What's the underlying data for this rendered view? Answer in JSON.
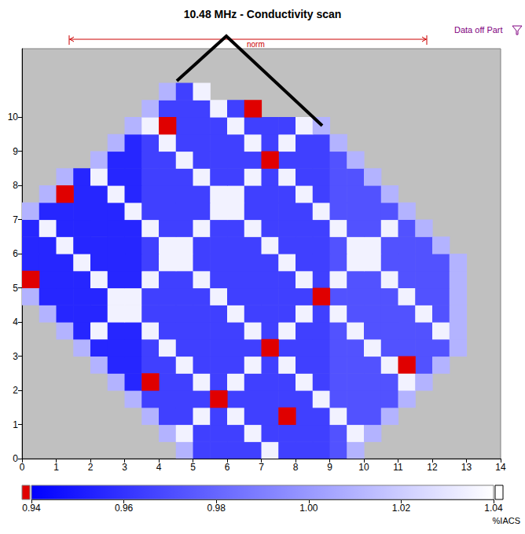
{
  "chart_data": {
    "type": "heatmap",
    "title": "10.48 MHz - Conductivity scan",
    "annotations": [
      "Data off Part",
      "norm"
    ],
    "x": [
      0.25,
      0.75,
      1.25,
      1.75,
      2.25,
      2.75,
      3.25,
      3.75,
      4.25,
      4.75,
      5.25,
      5.75,
      6.25,
      6.75,
      7.25,
      7.75,
      8.25,
      8.75,
      9.25,
      9.75,
      10.25,
      10.75,
      11.25,
      11.75,
      12.25,
      12.75,
      13.25,
      13.75
    ],
    "y": [
      0.25,
      0.75,
      1.25,
      1.75,
      2.25,
      2.75,
      3.25,
      3.75,
      4.25,
      4.75,
      5.25,
      5.75,
      6.25,
      6.75,
      7.25,
      7.75,
      8.25,
      8.75,
      9.25,
      9.75,
      10.25,
      10.75,
      11.25,
      11.75
    ],
    "cells": [
      [
        null,
        null,
        null,
        null,
        null,
        null,
        null,
        null,
        null,
        1.01,
        0.965,
        0.965,
        0.965,
        0.965,
        1.035,
        0.965,
        0.965,
        0.965,
        0.972,
        1.01,
        null,
        null,
        null,
        null,
        null,
        null,
        null,
        null
      ],
      [
        null,
        null,
        null,
        null,
        null,
        null,
        null,
        null,
        1.01,
        1.035,
        0.965,
        0.965,
        0.965,
        1.035,
        0.965,
        0.965,
        0.965,
        0.965,
        0.972,
        1.035,
        1.01,
        null,
        null,
        null,
        null,
        null,
        null,
        null
      ],
      [
        null,
        null,
        null,
        null,
        null,
        null,
        null,
        1.01,
        0.965,
        0.965,
        1.035,
        0.965,
        1.035,
        0.965,
        0.965,
        0.93,
        0.965,
        0.965,
        1.035,
        0.972,
        0.972,
        1.01,
        null,
        null,
        null,
        null,
        null,
        null
      ],
      [
        null,
        null,
        null,
        null,
        null,
        null,
        1.01,
        0.965,
        0.965,
        0.965,
        0.965,
        0.93,
        0.965,
        0.965,
        0.965,
        0.965,
        0.965,
        1.035,
        0.972,
        0.972,
        0.972,
        0.972,
        1.01,
        null,
        null,
        null,
        null,
        null
      ],
      [
        null,
        null,
        null,
        null,
        null,
        1.01,
        0.955,
        0.93,
        0.965,
        0.965,
        1.035,
        0.965,
        1.035,
        0.965,
        0.965,
        0.965,
        1.035,
        0.965,
        0.972,
        0.972,
        0.972,
        0.972,
        1.035,
        1.01,
        null,
        null,
        null,
        null
      ],
      [
        null,
        null,
        null,
        null,
        1.01,
        0.955,
        0.955,
        0.965,
        0.965,
        1.035,
        0.965,
        0.965,
        0.965,
        1.035,
        0.965,
        1.035,
        0.965,
        0.965,
        0.972,
        0.972,
        0.972,
        1.035,
        0.93,
        0.972,
        1.01,
        null,
        null,
        null
      ],
      [
        null,
        null,
        null,
        1.01,
        0.955,
        0.955,
        0.955,
        0.965,
        1.035,
        0.965,
        0.965,
        0.965,
        0.965,
        0.965,
        0.93,
        0.965,
        0.965,
        0.965,
        0.972,
        0.972,
        1.035,
        0.972,
        0.972,
        0.972,
        0.972,
        1.01,
        null,
        null
      ],
      [
        null,
        null,
        1.01,
        0.955,
        1.035,
        0.955,
        0.955,
        1.035,
        0.965,
        0.965,
        0.965,
        0.965,
        0.965,
        1.035,
        0.965,
        1.035,
        0.965,
        0.965,
        0.972,
        1.035,
        0.972,
        0.972,
        0.972,
        0.972,
        1.035,
        1.01,
        null,
        null
      ],
      [
        null,
        1.01,
        0.955,
        0.955,
        0.955,
        1.035,
        1.035,
        0.965,
        0.965,
        0.965,
        0.965,
        0.965,
        1.035,
        0.965,
        0.965,
        0.965,
        1.035,
        0.965,
        1.035,
        0.972,
        0.972,
        0.972,
        0.972,
        1.035,
        0.972,
        1.01,
        null,
        null
      ],
      [
        1.01,
        0.955,
        0.955,
        0.955,
        0.955,
        1.035,
        1.035,
        0.965,
        0.965,
        0.965,
        0.965,
        1.035,
        0.965,
        0.965,
        0.965,
        0.965,
        0.965,
        0.93,
        0.972,
        0.972,
        0.972,
        0.972,
        1.035,
        0.972,
        0.972,
        1.01,
        null,
        null
      ],
      [
        0.93,
        0.955,
        0.955,
        0.955,
        1.035,
        0.955,
        0.955,
        1.035,
        0.965,
        0.965,
        1.035,
        0.965,
        0.965,
        0.965,
        0.965,
        0.965,
        1.035,
        0.965,
        1.035,
        0.972,
        0.972,
        1.035,
        0.972,
        0.972,
        0.972,
        1.01,
        null,
        null
      ],
      [
        0.955,
        0.955,
        0.955,
        1.035,
        0.955,
        0.955,
        0.955,
        0.965,
        1.035,
        1.035,
        0.965,
        0.965,
        0.965,
        0.965,
        0.965,
        1.035,
        0.965,
        0.965,
        0.972,
        1.035,
        1.035,
        0.972,
        0.972,
        0.972,
        0.972,
        1.01,
        null,
        null
      ],
      [
        0.955,
        0.955,
        1.035,
        0.955,
        0.955,
        0.955,
        0.955,
        0.965,
        1.035,
        1.035,
        0.965,
        0.965,
        0.965,
        0.965,
        1.035,
        0.965,
        0.965,
        0.965,
        0.972,
        1.035,
        1.035,
        0.972,
        0.972,
        0.972,
        1.01,
        null,
        null,
        null
      ],
      [
        0.955,
        1.035,
        0.955,
        0.955,
        0.955,
        0.955,
        0.955,
        1.035,
        0.965,
        0.965,
        1.035,
        0.965,
        0.965,
        1.035,
        0.965,
        0.965,
        0.965,
        0.965,
        1.035,
        0.972,
        0.972,
        1.035,
        0.972,
        1.01,
        null,
        null,
        null,
        null
      ],
      [
        1.01,
        0.955,
        0.955,
        0.955,
        0.955,
        0.955,
        1.035,
        0.965,
        0.965,
        0.965,
        0.965,
        1.035,
        1.035,
        0.965,
        0.965,
        0.965,
        0.965,
        1.035,
        0.972,
        0.972,
        0.972,
        0.972,
        1.01,
        null,
        null,
        null,
        null,
        null
      ],
      [
        null,
        1.01,
        0.93,
        0.955,
        0.955,
        1.035,
        0.955,
        0.965,
        0.965,
        0.965,
        0.965,
        1.035,
        1.035,
        0.965,
        0.965,
        0.965,
        1.035,
        0.965,
        0.972,
        0.972,
        0.972,
        1.01,
        null,
        null,
        null,
        null,
        null,
        null
      ],
      [
        null,
        null,
        1.01,
        0.955,
        1.035,
        0.955,
        0.955,
        0.965,
        0.965,
        0.965,
        1.035,
        0.965,
        0.965,
        1.035,
        0.965,
        1.035,
        0.965,
        0.965,
        0.972,
        0.972,
        1.01,
        null,
        null,
        null,
        null,
        null,
        null,
        null
      ],
      [
        null,
        null,
        null,
        null,
        1.01,
        0.955,
        0.955,
        0.965,
        0.965,
        1.035,
        0.965,
        0.965,
        0.965,
        0.965,
        0.93,
        0.965,
        0.965,
        0.965,
        0.972,
        1.01,
        null,
        null,
        null,
        null,
        null,
        null,
        null,
        null
      ],
      [
        null,
        null,
        null,
        null,
        null,
        1.01,
        0.955,
        0.965,
        1.035,
        0.965,
        0.965,
        0.965,
        0.965,
        1.035,
        0.965,
        1.035,
        0.965,
        0.965,
        1.01,
        null,
        null,
        null,
        null,
        null,
        null,
        null,
        null,
        null
      ],
      [
        null,
        null,
        null,
        null,
        null,
        null,
        1.01,
        1.035,
        0.93,
        0.965,
        0.965,
        0.965,
        1.035,
        0.965,
        0.965,
        0.965,
        1.035,
        1.01,
        null,
        null,
        null,
        null,
        null,
        null,
        null,
        null,
        null,
        null
      ],
      [
        null,
        null,
        null,
        null,
        null,
        null,
        null,
        1.01,
        0.965,
        0.965,
        0.965,
        1.035,
        0.965,
        0.93,
        null,
        null,
        null,
        null,
        null,
        null,
        null,
        null,
        null,
        null,
        null,
        null,
        null,
        null
      ],
      [
        null,
        null,
        null,
        null,
        null,
        null,
        null,
        null,
        1.01,
        0.965,
        1.035,
        null,
        null,
        null,
        null,
        null,
        null,
        null,
        null,
        null,
        null,
        null,
        null,
        null,
        null,
        null,
        null,
        null
      ],
      [
        null,
        null,
        null,
        null,
        null,
        null,
        null,
        null,
        null,
        null,
        null,
        null,
        null,
        null,
        null,
        null,
        null,
        null,
        null,
        null,
        null,
        null,
        null,
        null,
        null,
        null,
        null,
        null
      ],
      [
        null,
        null,
        null,
        null,
        null,
        null,
        null,
        null,
        null,
        null,
        null,
        null,
        null,
        null,
        null,
        null,
        null,
        null,
        null,
        null,
        null,
        null,
        null,
        null,
        null,
        null,
        null,
        null
      ]
    ],
    "xlim": [
      0,
      14
    ],
    "xticks": [
      0,
      1,
      2,
      3,
      4,
      5,
      6,
      7,
      8,
      9,
      10,
      11,
      12,
      13,
      14
    ],
    "ylim": [
      0,
      12
    ],
    "yticks": [
      0,
      1,
      2,
      3,
      4,
      5,
      6,
      7,
      8,
      9,
      10
    ],
    "colorbar": {
      "range": [
        0.94,
        1.04
      ],
      "ticks": [
        0.94,
        0.96,
        0.98,
        {
          "value": 1,
          "label": "1.00"
        },
        1.02,
        1.04
      ],
      "label": "%IACS",
      "colors": [
        "#0000ff",
        "#ffffff"
      ]
    }
  }
}
